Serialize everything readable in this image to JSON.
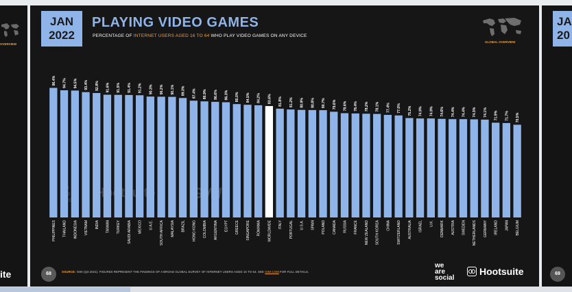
{
  "slide": {
    "month": "JAN",
    "year": "2022",
    "title": "PLAYING VIDEO GAMES",
    "subtitle": {
      "prefix": "PERCENTAGE OF ",
      "highlight": "INTERNET USERS AGED 16 TO 64",
      "suffix": " WHO PLAY VIDEO GAMES ON ANY DEVICE"
    },
    "map_label": "GLOBAL OVERVIEW",
    "page_number": "68",
    "source": {
      "label": "SOURCE:",
      "text": " GWI (Q3 2021). FIGURES REPRESENT THE FINDINGS OF A BROAD GLOBAL SURVEY OF INTERNET USERS AGED 16 TO 64. SEE ",
      "link": "GWI.COM",
      "end": " FOR FULL DETAILS."
    },
    "logo_we_are_social": [
      "we",
      "are",
      "social"
    ],
    "logo_hootsuite": "Hootsuite",
    "watermark": {
      "we_are_social": [
        "we",
        "are",
        "social"
      ],
      "hootsuite": "Hootsuite",
      "gwi": "GWI."
    }
  },
  "prev_slide": {
    "label": "OVERVIEW",
    "brand": "ite"
  },
  "next_slide": {
    "month": "JA",
    "year": "20",
    "page_number": "69"
  },
  "colors": {
    "background": "#161616",
    "bar": "#8fb4ea",
    "highlight_bar": "#ffffff",
    "accent": "#f0a03c"
  },
  "chart_data": {
    "type": "bar",
    "categories": [
      "PHILIPPINES",
      "THAILAND",
      "INDONESIA",
      "VIETNAM",
      "INDIA",
      "TAIWAN",
      "TURKEY",
      "SAUDI ARABIA",
      "MEXICO",
      "U.A.E.",
      "SOUTH AFRICA",
      "MALAYSIA",
      "BRAZIL",
      "HONG KONG",
      "COLOMBIA",
      "ARGENTINA",
      "EGYPT",
      "GREECE",
      "SINGAPORE",
      "ROMANIA",
      "WORLDWIDE",
      "ITALY",
      "PORTUGAL",
      "U.S.A.",
      "SPAIN",
      "POLAND",
      "CANADA",
      "RUSSIA",
      "FRANCE",
      "NEW ZEALAND",
      "SOUTH KOREA",
      "CHINA",
      "SWITZERLAND",
      "AUSTRALIA",
      "ISRAEL",
      "U.K.",
      "DENMARK",
      "AUSTRIA",
      "SWEDEN",
      "NETHERLANDS",
      "GERMANY",
      "IRELAND",
      "JAPAN",
      "BELGIUM"
    ],
    "values": [
      96.4,
      94.7,
      94.5,
      93.4,
      92.8,
      91.6,
      91.5,
      91.4,
      91.2,
      90.3,
      90.2,
      90.1,
      89.3,
      87.4,
      86.9,
      86.6,
      86.3,
      85.0,
      84.5,
      84.2,
      83.6,
      81.8,
      81.2,
      80.9,
      80.8,
      80.7,
      79.6,
      78.6,
      78.4,
      78.2,
      78.1,
      77.4,
      77.0,
      75.2,
      74.9,
      74.9,
      74.6,
      74.4,
      74.4,
      74.3,
      74.1,
      71.9,
      71.7,
      70.5
    ],
    "value_labels": [
      "96.4%",
      "94.7%",
      "94.5%",
      "93.4%",
      "92.8%",
      "91.6%",
      "91.5%",
      "91.4%",
      "91.2%",
      "90.3%",
      "90.2%",
      "90.1%",
      "89.3%",
      "87.4%",
      "86.9%",
      "86.6%",
      "86.3%",
      "85.0%",
      "84.5%",
      "84.2%",
      "83.6%",
      "81.8%",
      "81.2%",
      "80.9%",
      "80.8%",
      "80.7%",
      "79.6%",
      "78.6%",
      "78.4%",
      "78.2%",
      "78.1%",
      "77.4%",
      "77.0%",
      "75.2%",
      "74.9%",
      "74.9%",
      "74.6%",
      "74.4%",
      "74.4%",
      "74.3%",
      "74.1%",
      "71.9%",
      "71.7%",
      "70.5%"
    ],
    "highlight": "WORLDWIDE",
    "title": "PLAYING VIDEO GAMES",
    "xlabel": "",
    "ylabel": "",
    "ylim": [
      0,
      100
    ],
    "grid": false,
    "legend": "none"
  }
}
